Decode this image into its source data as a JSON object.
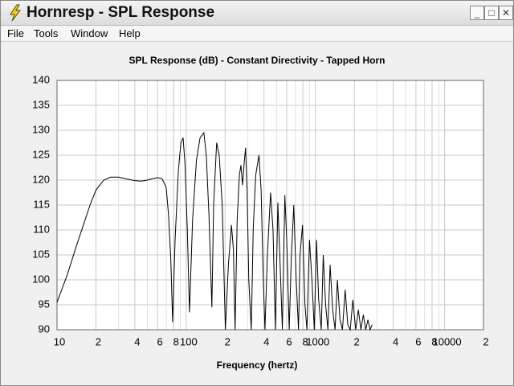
{
  "window": {
    "title": "Hornresp - SPL Response"
  },
  "menu": [
    "File",
    "Tools",
    "Window",
    "Help"
  ],
  "chart_data": {
    "type": "line",
    "title": "SPL Response (dB) - Constant Directivity - Tapped Horn",
    "xlabel": "Frequency (hertz)",
    "xscale": "log",
    "xlim": [
      10,
      20000
    ],
    "xticks": [
      10,
      {
        "value": 20,
        "label": "2"
      },
      {
        "value": 40,
        "label": "4"
      },
      {
        "value": 60,
        "label": "6"
      },
      {
        "value": 80,
        "label": "8"
      },
      100,
      {
        "value": 200,
        "label": "2"
      },
      {
        "value": 400,
        "label": "4"
      },
      {
        "value": 600,
        "label": "6"
      },
      {
        "value": 800,
        "label": "8"
      },
      1000,
      {
        "value": 2000,
        "label": "2"
      },
      {
        "value": 4000,
        "label": "4"
      },
      {
        "value": 6000,
        "label": "6"
      },
      {
        "value": 8000,
        "label": "8"
      },
      10000,
      {
        "value": 20000,
        "label": "2"
      }
    ],
    "x_minor_ticks": [
      30,
      50,
      70,
      90,
      300,
      500,
      700,
      900,
      3000,
      5000,
      7000,
      9000
    ],
    "ylim": [
      90,
      140
    ],
    "yticks": [
      90,
      95,
      100,
      105,
      110,
      115,
      120,
      125,
      130,
      135,
      140
    ],
    "grid": true,
    "color": "#000000",
    "x": [
      10,
      12,
      14,
      16,
      18,
      20,
      23,
      26,
      30,
      35,
      40,
      45,
      50,
      55,
      60,
      65,
      70,
      73,
      76,
      78.5,
      82,
      87,
      91,
      94.6,
      98,
      102,
      106,
      112,
      120,
      128,
      137,
      143,
      150,
      158,
      163,
      172,
      180,
      190,
      201,
      212,
      224,
      232,
      239,
      248,
      258,
      265,
      273,
      280,
      288,
      296,
      305,
      319,
      330,
      345,
      366,
      380,
      395,
      407,
      425,
      450,
      470,
      490,
      512,
      530,
      555,
      580,
      600,
      627,
      650,
      680,
      710,
      740,
      760,
      795,
      830,
      860,
      900,
      940,
      980,
      1020,
      1060,
      1110,
      1150,
      1200,
      1250,
      1300,
      1360,
      1420,
      1480,
      1550,
      1620,
      1700,
      1780,
      1860,
      1950,
      2050,
      2150,
      2250,
      2350,
      2450,
      2550,
      2650,
      2750
    ],
    "values": [
      95.5,
      101,
      106.5,
      111,
      115,
      118,
      120,
      120.6,
      120.6,
      120.2,
      119.9,
      119.8,
      120,
      120.3,
      120.5,
      120.3,
      118.5,
      113,
      104,
      91.5,
      108,
      122,
      127.5,
      128.5,
      123,
      110,
      93.5,
      112,
      124,
      128.5,
      129.5,
      125,
      113,
      94.5,
      115,
      127.5,
      125,
      115,
      90,
      103,
      111,
      106,
      90,
      112,
      121,
      123,
      119,
      123,
      126.5,
      118,
      100,
      90,
      110,
      121,
      125,
      118,
      100,
      90,
      105,
      117.5,
      110,
      90,
      115.5,
      105,
      90,
      117,
      108,
      90,
      104,
      115,
      100,
      90,
      105,
      111,
      95,
      90,
      108,
      100,
      90,
      108,
      96,
      90,
      105,
      95,
      90,
      103,
      94,
      90,
      100,
      92,
      90,
      98,
      91,
      90,
      96,
      90,
      94,
      90,
      93,
      90,
      92,
      90,
      91
    ]
  }
}
